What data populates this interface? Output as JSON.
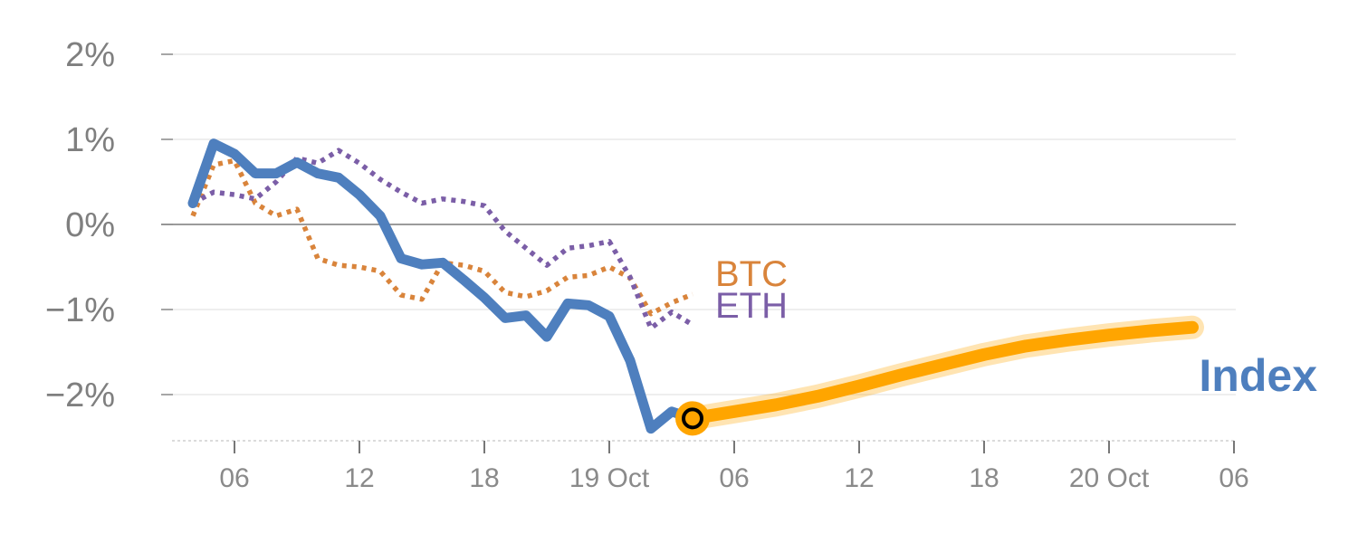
{
  "chart_data": {
    "type": "line",
    "title": "",
    "xlabel": "",
    "ylabel": "",
    "y_unit": "%",
    "ylim": [
      -2.6,
      2.2
    ],
    "grid": true,
    "y_ticks": [
      {
        "value": 2,
        "label": "2%"
      },
      {
        "value": 1,
        "label": "1%"
      },
      {
        "value": 0,
        "label": "0%"
      },
      {
        "value": -1,
        "label": "−1%"
      },
      {
        "value": -2,
        "label": "−2%"
      }
    ],
    "x_range": [
      "18 Oct 03:00",
      "20 Oct 06:00"
    ],
    "x_ticks": [
      {
        "value": "18 Oct 06:00",
        "label": "06"
      },
      {
        "value": "18 Oct 12:00",
        "label": "12"
      },
      {
        "value": "18 Oct 18:00",
        "label": "18"
      },
      {
        "value": "19 Oct 00:00",
        "label": "19 Oct"
      },
      {
        "value": "19 Oct 06:00",
        "label": "06"
      },
      {
        "value": "19 Oct 12:00",
        "label": "12"
      },
      {
        "value": "19 Oct 18:00",
        "label": "18"
      },
      {
        "value": "20 Oct 00:00",
        "label": "20 Oct"
      },
      {
        "value": "20 Oct 06:00",
        "label": "06"
      }
    ],
    "series": [
      {
        "name": "Index",
        "color": "#4e7fbe",
        "style": "solid",
        "points": [
          [
            "18 Oct 04:00",
            0.25
          ],
          [
            "18 Oct 05:00",
            0.95
          ],
          [
            "18 Oct 06:00",
            0.83
          ],
          [
            "18 Oct 07:00",
            0.6
          ],
          [
            "18 Oct 08:00",
            0.6
          ],
          [
            "18 Oct 09:00",
            0.73
          ],
          [
            "18 Oct 10:00",
            0.6
          ],
          [
            "18 Oct 11:00",
            0.55
          ],
          [
            "18 Oct 12:00",
            0.35
          ],
          [
            "18 Oct 13:00",
            0.1
          ],
          [
            "18 Oct 14:00",
            -0.4
          ],
          [
            "18 Oct 15:00",
            -0.47
          ],
          [
            "18 Oct 16:00",
            -0.45
          ],
          [
            "18 Oct 17:00",
            -0.65
          ],
          [
            "18 Oct 18:00",
            -0.86
          ],
          [
            "18 Oct 19:00",
            -1.1
          ],
          [
            "18 Oct 20:00",
            -1.07
          ],
          [
            "18 Oct 21:00",
            -1.32
          ],
          [
            "18 Oct 22:00",
            -0.93
          ],
          [
            "18 Oct 23:00",
            -0.95
          ],
          [
            "19 Oct 00:00",
            -1.08
          ],
          [
            "19 Oct 01:00",
            -1.6
          ],
          [
            "19 Oct 02:00",
            -2.4
          ],
          [
            "19 Oct 03:00",
            -2.2
          ],
          [
            "19 Oct 04:00",
            -2.28
          ]
        ]
      },
      {
        "name": "BTC",
        "color": "#d9843b",
        "style": "dotted",
        "points": [
          [
            "18 Oct 04:00",
            0.1
          ],
          [
            "18 Oct 05:00",
            0.7
          ],
          [
            "18 Oct 06:00",
            0.75
          ],
          [
            "18 Oct 07:00",
            0.25
          ],
          [
            "18 Oct 08:00",
            0.1
          ],
          [
            "18 Oct 09:00",
            0.18
          ],
          [
            "18 Oct 10:00",
            -0.4
          ],
          [
            "18 Oct 11:00",
            -0.48
          ],
          [
            "18 Oct 12:00",
            -0.5
          ],
          [
            "18 Oct 13:00",
            -0.55
          ],
          [
            "18 Oct 14:00",
            -0.83
          ],
          [
            "18 Oct 15:00",
            -0.88
          ],
          [
            "18 Oct 16:00",
            -0.45
          ],
          [
            "18 Oct 17:00",
            -0.48
          ],
          [
            "18 Oct 18:00",
            -0.55
          ],
          [
            "18 Oct 19:00",
            -0.8
          ],
          [
            "18 Oct 20:00",
            -0.85
          ],
          [
            "18 Oct 21:00",
            -0.78
          ],
          [
            "18 Oct 22:00",
            -0.62
          ],
          [
            "18 Oct 23:00",
            -0.6
          ],
          [
            "19 Oct 00:00",
            -0.5
          ],
          [
            "19 Oct 01:00",
            -0.63
          ],
          [
            "19 Oct 02:00",
            -1.05
          ],
          [
            "19 Oct 03:00",
            -0.92
          ],
          [
            "19 Oct 04:00",
            -0.82
          ]
        ]
      },
      {
        "name": "ETH",
        "color": "#7b5ea7",
        "style": "dotted",
        "points": [
          [
            "18 Oct 04:00",
            0.25
          ],
          [
            "18 Oct 05:00",
            0.38
          ],
          [
            "18 Oct 06:00",
            0.35
          ],
          [
            "18 Oct 07:00",
            0.3
          ],
          [
            "18 Oct 08:00",
            0.5
          ],
          [
            "18 Oct 09:00",
            0.78
          ],
          [
            "18 Oct 10:00",
            0.72
          ],
          [
            "18 Oct 11:00",
            0.87
          ],
          [
            "18 Oct 12:00",
            0.72
          ],
          [
            "18 Oct 13:00",
            0.53
          ],
          [
            "18 Oct 14:00",
            0.38
          ],
          [
            "18 Oct 15:00",
            0.25
          ],
          [
            "18 Oct 16:00",
            0.3
          ],
          [
            "18 Oct 17:00",
            0.27
          ],
          [
            "18 Oct 18:00",
            0.22
          ],
          [
            "18 Oct 19:00",
            -0.08
          ],
          [
            "18 Oct 20:00",
            -0.28
          ],
          [
            "18 Oct 21:00",
            -0.48
          ],
          [
            "18 Oct 22:00",
            -0.28
          ],
          [
            "18 Oct 23:00",
            -0.25
          ],
          [
            "19 Oct 00:00",
            -0.2
          ],
          [
            "19 Oct 01:00",
            -0.62
          ],
          [
            "19 Oct 02:00",
            -1.22
          ],
          [
            "19 Oct 03:00",
            -1.03
          ],
          [
            "19 Oct 04:00",
            -1.18
          ]
        ]
      },
      {
        "name": "",
        "color": "#ffa500",
        "style": "projection",
        "points": [
          [
            "19 Oct 04:00",
            -2.28
          ],
          [
            "19 Oct 06:00",
            -2.2
          ],
          [
            "19 Oct 08:00",
            -2.12
          ],
          [
            "19 Oct 10:00",
            -2.02
          ],
          [
            "19 Oct 12:00",
            -1.9
          ],
          [
            "19 Oct 14:00",
            -1.77
          ],
          [
            "19 Oct 16:00",
            -1.65
          ],
          [
            "19 Oct 18:00",
            -1.53
          ],
          [
            "19 Oct 20:00",
            -1.43
          ],
          [
            "19 Oct 22:00",
            -1.36
          ],
          [
            "20 Oct 00:00",
            -1.3
          ],
          [
            "20 Oct 02:00",
            -1.25
          ],
          [
            "20 Oct 04:00",
            -1.21
          ]
        ]
      }
    ],
    "marker": {
      "x": "19 Oct 04:00",
      "y": -2.28,
      "color": "#ffa500"
    },
    "labels": [
      {
        "text": "BTC",
        "color": "#d9843b"
      },
      {
        "text": "ETH",
        "color": "#7b5ea7"
      },
      {
        "text": "Index",
        "color": "#4e7fbe"
      }
    ]
  }
}
